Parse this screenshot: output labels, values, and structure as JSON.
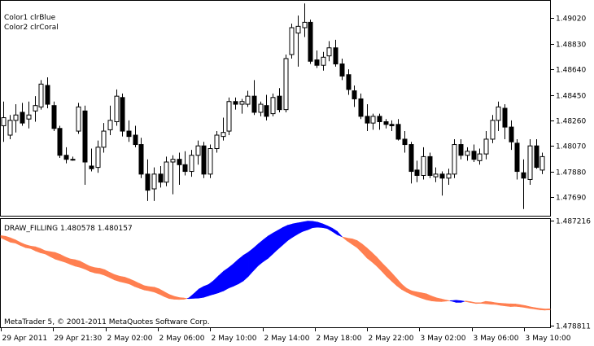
{
  "chart_data": [
    {
      "type": "candlestick",
      "panel": "main",
      "legend": [
        "Color1 clrBlue",
        "Color2 clrCoral"
      ],
      "y_ticks": [
        "1.49020",
        "1.48830",
        "1.48640",
        "1.48450",
        "1.48260",
        "1.48070",
        "1.47880",
        "1.47690"
      ],
      "y_tick_values": [
        1.4902,
        1.4883,
        1.4864,
        1.4845,
        1.4826,
        1.4807,
        1.4788,
        1.4769
      ],
      "ylim": [
        1.4755,
        1.4915
      ],
      "candles": [
        {
          "o": 1.4822,
          "h": 1.484,
          "l": 1.481,
          "c": 1.4828
        },
        {
          "o": 1.4815,
          "h": 1.483,
          "l": 1.4812,
          "c": 1.4826
        },
        {
          "o": 1.4826,
          "h": 1.4838,
          "l": 1.4817,
          "c": 1.483
        },
        {
          "o": 1.4832,
          "h": 1.4839,
          "l": 1.4822,
          "c": 1.4824
        },
        {
          "o": 1.4827,
          "h": 1.484,
          "l": 1.482,
          "c": 1.483
        },
        {
          "o": 1.4833,
          "h": 1.4844,
          "l": 1.4825,
          "c": 1.4837
        },
        {
          "o": 1.4836,
          "h": 1.4856,
          "l": 1.4834,
          "c": 1.4853
        },
        {
          "o": 1.4852,
          "h": 1.4858,
          "l": 1.4835,
          "c": 1.4838
        },
        {
          "o": 1.4837,
          "h": 1.484,
          "l": 1.4818,
          "c": 1.482
        },
        {
          "o": 1.482,
          "h": 1.4822,
          "l": 1.4798,
          "c": 1.48
        },
        {
          "o": 1.48,
          "h": 1.4806,
          "l": 1.4794,
          "c": 1.4797
        },
        {
          "o": 1.4797,
          "h": 1.4799,
          "l": 1.4796,
          "c": 1.4797
        },
        {
          "o": 1.4818,
          "h": 1.4839,
          "l": 1.4816,
          "c": 1.4836
        },
        {
          "o": 1.4833,
          "h": 1.4837,
          "l": 1.4778,
          "c": 1.4795
        },
        {
          "o": 1.4792,
          "h": 1.4805,
          "l": 1.4788,
          "c": 1.479
        },
        {
          "o": 1.4791,
          "h": 1.4811,
          "l": 1.4787,
          "c": 1.4806
        },
        {
          "o": 1.4806,
          "h": 1.4824,
          "l": 1.4802,
          "c": 1.4818
        },
        {
          "o": 1.4819,
          "h": 1.4837,
          "l": 1.4815,
          "c": 1.4826
        },
        {
          "o": 1.4825,
          "h": 1.4849,
          "l": 1.4822,
          "c": 1.4844
        },
        {
          "o": 1.4843,
          "h": 1.4846,
          "l": 1.4814,
          "c": 1.4818
        },
        {
          "o": 1.4818,
          "h": 1.4826,
          "l": 1.481,
          "c": 1.4814
        },
        {
          "o": 1.4815,
          "h": 1.4822,
          "l": 1.4806,
          "c": 1.4808
        },
        {
          "o": 1.4808,
          "h": 1.4813,
          "l": 1.4783,
          "c": 1.4786
        },
        {
          "o": 1.4786,
          "h": 1.4797,
          "l": 1.4766,
          "c": 1.4774
        },
        {
          "o": 1.4775,
          "h": 1.4791,
          "l": 1.4766,
          "c": 1.4786
        },
        {
          "o": 1.4786,
          "h": 1.4792,
          "l": 1.4776,
          "c": 1.478
        },
        {
          "o": 1.478,
          "h": 1.4799,
          "l": 1.4777,
          "c": 1.4795
        },
        {
          "o": 1.4795,
          "h": 1.48,
          "l": 1.4771,
          "c": 1.4797
        },
        {
          "o": 1.4797,
          "h": 1.4802,
          "l": 1.4778,
          "c": 1.4793
        },
        {
          "o": 1.4793,
          "h": 1.4803,
          "l": 1.4785,
          "c": 1.4788
        },
        {
          "o": 1.4788,
          "h": 1.4804,
          "l": 1.4784,
          "c": 1.48
        },
        {
          "o": 1.48,
          "h": 1.4811,
          "l": 1.4793,
          "c": 1.4807
        },
        {
          "o": 1.4807,
          "h": 1.481,
          "l": 1.4783,
          "c": 1.4786
        },
        {
          "o": 1.4786,
          "h": 1.4808,
          "l": 1.4783,
          "c": 1.4805
        },
        {
          "o": 1.4805,
          "h": 1.4818,
          "l": 1.4802,
          "c": 1.4815
        },
        {
          "o": 1.4814,
          "h": 1.4828,
          "l": 1.4811,
          "c": 1.4817
        },
        {
          "o": 1.4818,
          "h": 1.4843,
          "l": 1.4815,
          "c": 1.484
        },
        {
          "o": 1.484,
          "h": 1.4843,
          "l": 1.4834,
          "c": 1.4838
        },
        {
          "o": 1.4838,
          "h": 1.4842,
          "l": 1.4831,
          "c": 1.484
        },
        {
          "o": 1.4838,
          "h": 1.4848,
          "l": 1.4836,
          "c": 1.4844
        },
        {
          "o": 1.4844,
          "h": 1.4856,
          "l": 1.483,
          "c": 1.4832
        },
        {
          "o": 1.4832,
          "h": 1.484,
          "l": 1.4829,
          "c": 1.4838
        },
        {
          "o": 1.4837,
          "h": 1.4845,
          "l": 1.4826,
          "c": 1.4829
        },
        {
          "o": 1.4831,
          "h": 1.4846,
          "l": 1.4829,
          "c": 1.4843
        },
        {
          "o": 1.4844,
          "h": 1.485,
          "l": 1.4832,
          "c": 1.4834
        },
        {
          "o": 1.4834,
          "h": 1.4875,
          "l": 1.4832,
          "c": 1.4872
        },
        {
          "o": 1.4875,
          "h": 1.4898,
          "l": 1.4872,
          "c": 1.4895
        },
        {
          "o": 1.4891,
          "h": 1.4904,
          "l": 1.4866,
          "c": 1.4896
        },
        {
          "o": 1.4895,
          "h": 1.4913,
          "l": 1.4888,
          "c": 1.4899
        },
        {
          "o": 1.4899,
          "h": 1.4901,
          "l": 1.4868,
          "c": 1.487
        },
        {
          "o": 1.4871,
          "h": 1.4878,
          "l": 1.4865,
          "c": 1.4867
        },
        {
          "o": 1.4867,
          "h": 1.4877,
          "l": 1.4863,
          "c": 1.4873
        },
        {
          "o": 1.4874,
          "h": 1.4885,
          "l": 1.487,
          "c": 1.488
        },
        {
          "o": 1.488,
          "h": 1.4886,
          "l": 1.4866,
          "c": 1.4868
        },
        {
          "o": 1.4868,
          "h": 1.4872,
          "l": 1.4856,
          "c": 1.4859
        },
        {
          "o": 1.486,
          "h": 1.4864,
          "l": 1.4845,
          "c": 1.4849
        },
        {
          "o": 1.4848,
          "h": 1.4852,
          "l": 1.4836,
          "c": 1.4842
        },
        {
          "o": 1.4842,
          "h": 1.4846,
          "l": 1.4827,
          "c": 1.4829
        },
        {
          "o": 1.4829,
          "h": 1.4838,
          "l": 1.4818,
          "c": 1.4824
        },
        {
          "o": 1.4824,
          "h": 1.4831,
          "l": 1.4819,
          "c": 1.4829
        },
        {
          "o": 1.4829,
          "h": 1.4831,
          "l": 1.4819,
          "c": 1.4825
        },
        {
          "o": 1.4825,
          "h": 1.4827,
          "l": 1.482,
          "c": 1.4823
        },
        {
          "o": 1.4823,
          "h": 1.4826,
          "l": 1.4818,
          "c": 1.4822
        },
        {
          "o": 1.4823,
          "h": 1.4827,
          "l": 1.4811,
          "c": 1.4812
        },
        {
          "o": 1.4812,
          "h": 1.4818,
          "l": 1.4802,
          "c": 1.4808
        },
        {
          "o": 1.4808,
          "h": 1.481,
          "l": 1.4779,
          "c": 1.4788
        },
        {
          "o": 1.4789,
          "h": 1.4796,
          "l": 1.478,
          "c": 1.4785
        },
        {
          "o": 1.4785,
          "h": 1.4806,
          "l": 1.4782,
          "c": 1.4799
        },
        {
          "o": 1.4799,
          "h": 1.4802,
          "l": 1.4783,
          "c": 1.4785
        },
        {
          "o": 1.4784,
          "h": 1.4791,
          "l": 1.478,
          "c": 1.4786
        },
        {
          "o": 1.4786,
          "h": 1.4788,
          "l": 1.477,
          "c": 1.4783
        },
        {
          "o": 1.4783,
          "h": 1.479,
          "l": 1.4778,
          "c": 1.4786
        },
        {
          "o": 1.4786,
          "h": 1.4812,
          "l": 1.4783,
          "c": 1.4808
        },
        {
          "o": 1.4808,
          "h": 1.4812,
          "l": 1.4797,
          "c": 1.48
        },
        {
          "o": 1.48,
          "h": 1.4806,
          "l": 1.4796,
          "c": 1.4803
        },
        {
          "o": 1.4803,
          "h": 1.4808,
          "l": 1.4795,
          "c": 1.4797
        },
        {
          "o": 1.4796,
          "h": 1.4805,
          "l": 1.4793,
          "c": 1.4801
        },
        {
          "o": 1.4801,
          "h": 1.4818,
          "l": 1.4797,
          "c": 1.4812
        },
        {
          "o": 1.4812,
          "h": 1.483,
          "l": 1.4809,
          "c": 1.4826
        },
        {
          "o": 1.4826,
          "h": 1.484,
          "l": 1.4818,
          "c": 1.4836
        },
        {
          "o": 1.4835,
          "h": 1.4838,
          "l": 1.4812,
          "c": 1.4821
        },
        {
          "o": 1.4821,
          "h": 1.4826,
          "l": 1.4804,
          "c": 1.481
        },
        {
          "o": 1.4809,
          "h": 1.4812,
          "l": 1.4782,
          "c": 1.4788
        },
        {
          "o": 1.4787,
          "h": 1.4797,
          "l": 1.476,
          "c": 1.4783
        },
        {
          "o": 1.4782,
          "h": 1.4812,
          "l": 1.4778,
          "c": 1.4807
        },
        {
          "o": 1.4807,
          "h": 1.4812,
          "l": 1.479,
          "c": 1.4791
        },
        {
          "o": 1.4789,
          "h": 1.4802,
          "l": 1.4786,
          "c": 1.4799
        }
      ]
    },
    {
      "type": "area",
      "panel": "indicator",
      "label": "DRAW_FILLING 1.480578 1.480157",
      "y_ticks": [
        "1.487216",
        "1.478811"
      ],
      "y_tick_values": [
        1.487216,
        1.478811
      ],
      "ylim": [
        1.47866,
        1.48735
      ],
      "fill_colors": {
        "above": "#0000FF",
        "below": "#FF7F50"
      },
      "series": [
        {
          "name": "Color1 clrBlue",
          "values": [
            1.48585,
            1.48566,
            1.48548,
            1.48541,
            1.48522,
            1.48505,
            1.48498,
            1.48479,
            1.48464,
            1.48454,
            1.48433,
            1.48413,
            1.484,
            1.48388,
            1.48372,
            1.48357,
            1.48347,
            1.48333,
            1.48314,
            1.48302,
            1.48296,
            1.48283,
            1.48265,
            1.48246,
            1.48233,
            1.48224,
            1.48213,
            1.48194,
            1.48179,
            1.48165,
            1.48158,
            1.48149,
            1.48132,
            1.48113,
            1.48097,
            1.48091,
            1.48089,
            1.48091,
            1.48101,
            1.48135,
            1.48172,
            1.48194,
            1.4821,
            1.4824,
            1.48279,
            1.48315,
            1.48343,
            1.48375,
            1.48411,
            1.48443,
            1.48468,
            1.48499,
            1.48534,
            1.48567,
            1.48598,
            1.48622,
            1.48644,
            1.48667,
            1.48685,
            1.48696,
            1.48704,
            1.48711,
            1.48718,
            1.48717,
            1.4871,
            1.48697,
            1.4868,
            1.48661,
            1.48635,
            1.48591,
            1.48559,
            1.48532,
            1.48505,
            1.48465,
            1.48422,
            1.48391,
            1.48356,
            1.48316,
            1.48273,
            1.48236,
            1.482,
            1.4817,
            1.48148,
            1.48129,
            1.48114,
            1.481,
            1.48087,
            1.48078,
            1.48074,
            1.48072,
            1.48076,
            1.4808,
            1.48083,
            1.48079,
            1.48072,
            1.48064,
            1.48057,
            1.48058,
            1.48055,
            1.48051,
            1.48049,
            1.48042,
            1.48037,
            1.48032,
            1.48034,
            1.4803,
            1.48024,
            1.48017,
            1.48012,
            1.48006,
            1.48004,
            1.48006
          ]
        },
        {
          "name": "Color2 clrCoral",
          "values": [
            1.48602,
            1.48596,
            1.48583,
            1.48567,
            1.48546,
            1.48529,
            1.48518,
            1.48512,
            1.48498,
            1.4848,
            1.48473,
            1.48466,
            1.48451,
            1.48431,
            1.48415,
            1.48408,
            1.48397,
            1.48376,
            1.48356,
            1.48345,
            1.4834,
            1.48328,
            1.48307,
            1.48289,
            1.48276,
            1.48269,
            1.48254,
            1.48237,
            1.48218,
            1.482,
            1.48192,
            1.48188,
            1.48174,
            1.48152,
            1.4813,
            1.48115,
            1.48105,
            1.48101,
            1.48096,
            1.48098,
            1.481,
            1.48106,
            1.48119,
            1.48131,
            1.48143,
            1.48158,
            1.4818,
            1.48196,
            1.48214,
            1.48238,
            1.48274,
            1.48318,
            1.4836,
            1.48392,
            1.48419,
            1.48456,
            1.48493,
            1.48528,
            1.48563,
            1.4859,
            1.48614,
            1.48635,
            1.48648,
            1.48665,
            1.48669,
            1.48666,
            1.48658,
            1.48635,
            1.48609,
            1.48591,
            1.48582,
            1.48576,
            1.48562,
            1.48535,
            1.48502,
            1.48466,
            1.48428,
            1.48384,
            1.48344,
            1.48302,
            1.48258,
            1.48213,
            1.48179,
            1.48159,
            1.4815,
            1.48143,
            1.48135,
            1.48117,
            1.48103,
            1.48094,
            1.48084,
            1.48077,
            1.48066,
            1.48066,
            1.48077,
            1.48071,
            1.48063,
            1.48063,
            1.48074,
            1.4807,
            1.48063,
            1.48059,
            1.48056,
            1.48054,
            1.48053,
            1.48047,
            1.4804,
            1.4803,
            1.48023,
            1.48017,
            1.48013,
            1.48014
          ]
        }
      ]
    }
  ],
  "x_ticks": [
    "29 Apr 2011",
    "29 Apr 21:30",
    "2 May 02:00",
    "2 May 06:00",
    "2 May 10:00",
    "2 May 14:00",
    "2 May 18:00",
    "2 May 22:00",
    "3 May 02:00",
    "3 May 06:00",
    "3 May 10:00"
  ],
  "copyright": "MetaTrader 5, © 2001-2011 MetaQuotes Software Corp."
}
